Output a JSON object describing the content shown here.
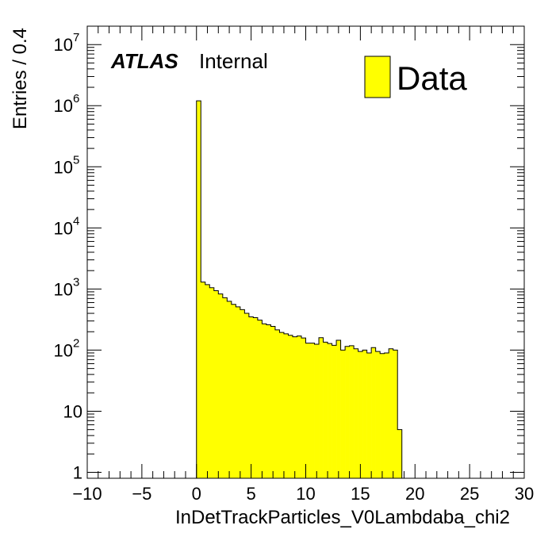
{
  "chart_data": {
    "type": "bar",
    "style": "step-filled-histogram",
    "xlabel": "InDetTrackParticles_V0Lambdaba_chi2",
    "ylabel": "Entries / 0.4",
    "xlim": [
      -10,
      30
    ],
    "ylim": [
      0.8,
      20000000
    ],
    "ylog": true,
    "grid": false,
    "bin_width": 0.4,
    "fill_color": "#ffff00",
    "line_color": "#000000",
    "x_ticks": [
      {
        "value": -10,
        "label": "−10"
      },
      {
        "value": -5,
        "label": "−5"
      },
      {
        "value": 0,
        "label": "0"
      },
      {
        "value": 5,
        "label": "5"
      },
      {
        "value": 10,
        "label": "10"
      },
      {
        "value": 15,
        "label": "15"
      },
      {
        "value": 20,
        "label": "20"
      },
      {
        "value": 25,
        "label": "25"
      },
      {
        "value": 30,
        "label": "30"
      }
    ],
    "y_ticks": [
      {
        "value": 1,
        "base": "1",
        "exp": ""
      },
      {
        "value": 10,
        "base": "10",
        "exp": ""
      },
      {
        "value": 100,
        "base": "10",
        "exp": "2"
      },
      {
        "value": 1000,
        "base": "10",
        "exp": "3"
      },
      {
        "value": 10000,
        "base": "10",
        "exp": "4"
      },
      {
        "value": 100000,
        "base": "10",
        "exp": "5"
      },
      {
        "value": 1000000,
        "base": "10",
        "exp": "6"
      },
      {
        "value": 10000000,
        "base": "10",
        "exp": "7"
      }
    ],
    "legend": {
      "label": "Data",
      "position": "top-right"
    },
    "annotation": {
      "bold": "ATLAS",
      "text": "Internal"
    },
    "bins": {
      "x_low": [
        0.0,
        0.4,
        0.8,
        1.2,
        1.6,
        2.0,
        2.4,
        2.8,
        3.2,
        3.6,
        4.0,
        4.4,
        4.8,
        5.2,
        5.6,
        6.0,
        6.4,
        6.8,
        7.2,
        7.6,
        8.0,
        8.4,
        8.8,
        9.2,
        9.6,
        10.0,
        10.4,
        10.8,
        11.2,
        11.6,
        12.0,
        12.4,
        12.8,
        13.2,
        13.6,
        14.0,
        14.4,
        14.8,
        15.2,
        15.6,
        16.0,
        16.4,
        16.8,
        17.2,
        17.6,
        18.0,
        18.4
      ],
      "values": [
        1200000,
        1300,
        1180,
        1050,
        940,
        830,
        720,
        630,
        560,
        510,
        460,
        400,
        350,
        340,
        310,
        270,
        260,
        245,
        215,
        195,
        185,
        175,
        165,
        170,
        158,
        130,
        130,
        125,
        160,
        135,
        128,
        120,
        145,
        100,
        115,
        118,
        105,
        95,
        100,
        90,
        110,
        95,
        88,
        90,
        105,
        100,
        5
      ]
    }
  }
}
